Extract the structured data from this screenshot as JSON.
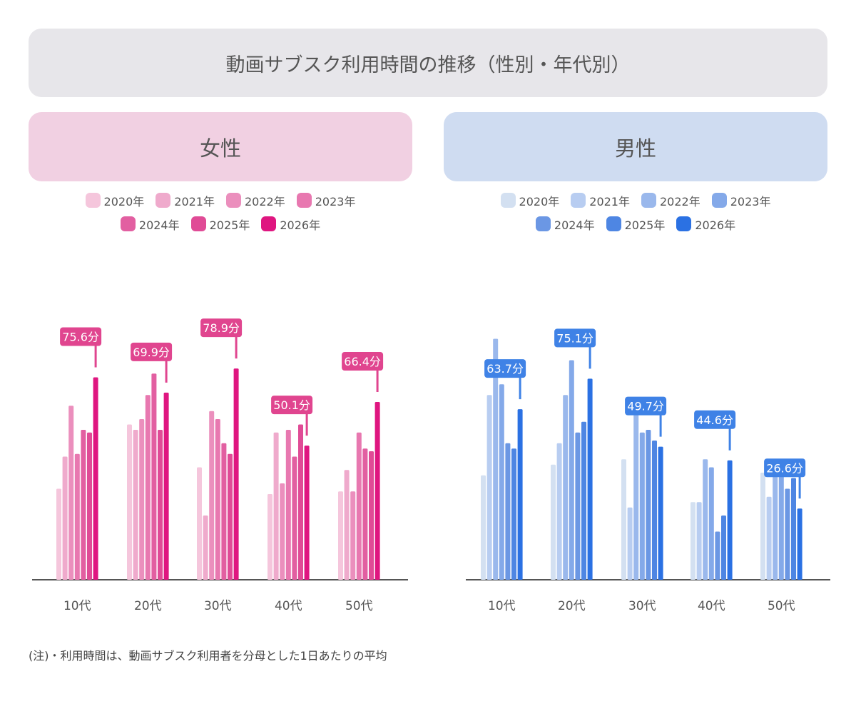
{
  "title": "動画サブスク利用時間の推移（性別・年代別）",
  "note": "(注)・利用時間は、動画サブスク利用者を分母とした1日あたりの平均",
  "unit": "分",
  "chart_data": [
    {
      "type": "bar",
      "title": "女性",
      "categories": [
        "10代",
        "20代",
        "30代",
        "40代",
        "50代"
      ],
      "series": [
        {
          "name": "2020年",
          "color": "#f5c6dc",
          "values": [
            34,
            58,
            42,
            32,
            33
          ]
        },
        {
          "name": "2021年",
          "color": "#efaacc",
          "values": [
            46,
            56,
            24,
            55,
            41
          ]
        },
        {
          "name": "2022年",
          "color": "#eb8fbd",
          "values": [
            65,
            60,
            63,
            36,
            33
          ]
        },
        {
          "name": "2023年",
          "color": "#e878b0",
          "values": [
            47,
            69,
            60,
            56,
            55
          ]
        },
        {
          "name": "2024年",
          "color": "#e25fa1",
          "values": [
            56,
            77,
            51,
            46,
            49
          ]
        },
        {
          "name": "2025年",
          "color": "#e04b96",
          "values": [
            55,
            56,
            47,
            58,
            48
          ]
        },
        {
          "name": "2026年",
          "color": "#df1680",
          "values": [
            75.6,
            69.9,
            78.9,
            50.1,
            66.4
          ]
        }
      ],
      "labels": [
        "75.6分",
        "69.9分",
        "78.9分",
        "50.1分",
        "66.4分"
      ],
      "ylim": [
        0,
        100
      ]
    },
    {
      "type": "bar",
      "title": "男性",
      "categories": [
        "10代",
        "20代",
        "30代",
        "40代",
        "50代"
      ],
      "series": [
        {
          "name": "2020年",
          "color": "#d3e0f1",
          "values": [
            39,
            43,
            45,
            29,
            40
          ]
        },
        {
          "name": "2021年",
          "color": "#b8cdf1",
          "values": [
            69,
            51,
            27,
            29,
            31
          ]
        },
        {
          "name": "2022年",
          "color": "#9ab8ec",
          "values": [
            90,
            69,
            62,
            45,
            39
          ]
        },
        {
          "name": "2023年",
          "color": "#84a9e9",
          "values": [
            73,
            82,
            55,
            42,
            40
          ]
        },
        {
          "name": "2024年",
          "color": "#6b97e4",
          "values": [
            51,
            55,
            56,
            18,
            34
          ]
        },
        {
          "name": "2025年",
          "color": "#4e86e3",
          "values": [
            49,
            59,
            52,
            24,
            38
          ]
        },
        {
          "name": "2026年",
          "color": "#2b71e3",
          "values": [
            63.7,
            75.1,
            49.7,
            44.6,
            26.6
          ]
        }
      ],
      "labels": [
        "63.7分",
        "75.1分",
        "49.7分",
        "44.6分",
        "26.6分"
      ],
      "ylim": [
        0,
        100
      ]
    }
  ],
  "label_colors": {
    "female": "#e0458f",
    "male": "#3f82e6"
  }
}
